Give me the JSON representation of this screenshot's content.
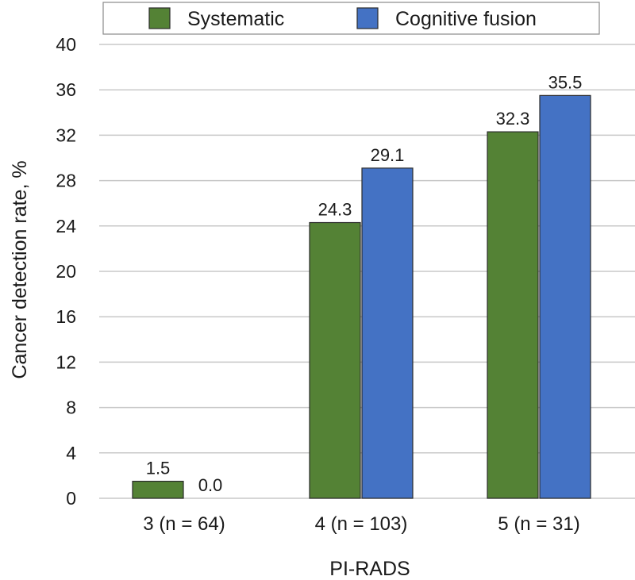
{
  "chart_data": {
    "type": "bar",
    "title": "",
    "xlabel": "PI-RADS",
    "ylabel": "Cancer detection rate, %",
    "ylim": [
      0,
      40
    ],
    "yticks": [
      0,
      4,
      8,
      12,
      16,
      20,
      24,
      28,
      32,
      36,
      40
    ],
    "ytick_labels": [
      "0",
      "4",
      "8",
      "12",
      "16",
      "20",
      "24",
      "28",
      "32",
      "36",
      "40"
    ],
    "categories": [
      "3 (n = 64)",
      "4 (n = 103)",
      "5 (n = 31)"
    ],
    "series": [
      {
        "name": "Systematic",
        "color": "#548235",
        "values": [
          1.5,
          24.3,
          32.3
        ],
        "labels": [
          "1.5",
          "24.3",
          "32.3"
        ]
      },
      {
        "name": "Cognitive fusion",
        "color": "#4472c4",
        "values": [
          0.0,
          29.1,
          35.5
        ],
        "labels": [
          "0.0",
          "29.1",
          "35.5"
        ]
      }
    ],
    "grid": true,
    "legend_position": "top"
  }
}
